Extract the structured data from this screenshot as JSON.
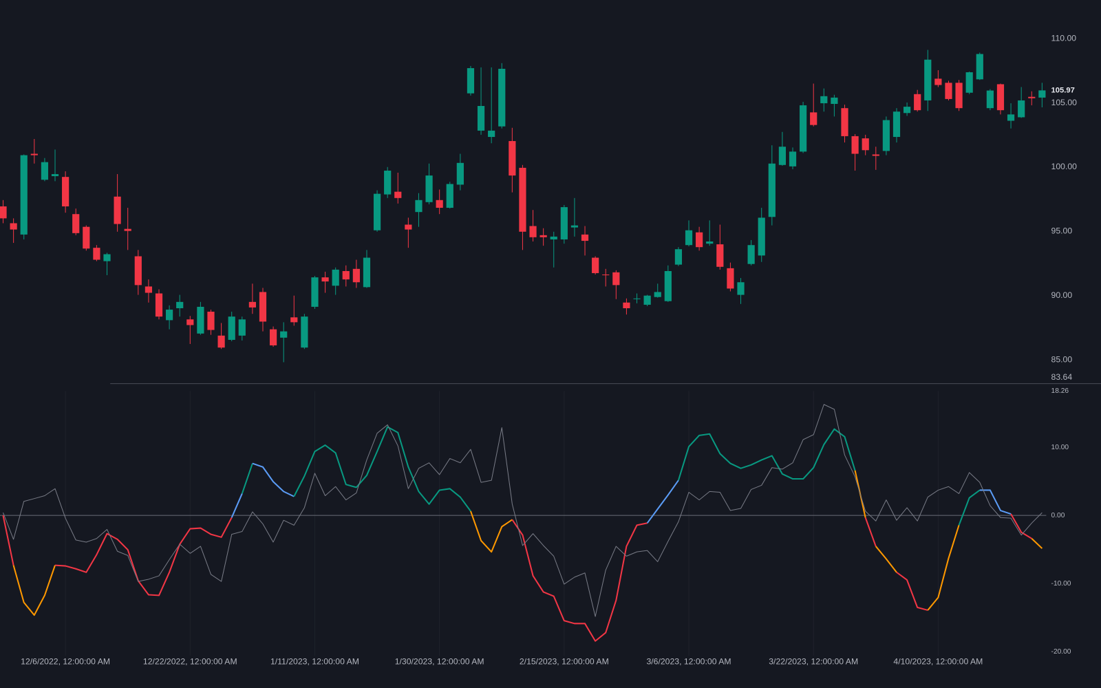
{
  "chart_data": [
    {
      "type": "candlestick",
      "up_color": "#089981",
      "down_color": "#f23645",
      "xlim": [
        -0.3,
        100.4
      ],
      "ylim": [
        83.19,
        113.0
      ],
      "yticks": [
        {
          "value": 110,
          "label": "110.00"
        },
        {
          "value": 105,
          "label": "105.00"
        },
        {
          "value": 100,
          "label": "100.00"
        },
        {
          "value": 95,
          "label": "95.00"
        },
        {
          "value": 90,
          "label": "90.00"
        },
        {
          "value": 85,
          "label": "85.00"
        },
        83.64
      ],
      "grid": false,
      "open": [
        96.95,
        95.64,
        94.76,
        101.04,
        99.02,
        99.3,
        99.24,
        96.35,
        95.36,
        93.73,
        92.69,
        97.71,
        95.2,
        93.07,
        90.72,
        90.18,
        88.1,
        89.03,
        88.16,
        87.06,
        88.76,
        86.9,
        86.57,
        86.9,
        89.52,
        90.29,
        87.39,
        86.74,
        88.32,
        85.97,
        89.14,
        91.43,
        90.78,
        91.92,
        92.09,
        90.67,
        95.09,
        97.88,
        98.09,
        95.53,
        96.51,
        97.28,
        97.44,
        96.84,
        98.64,
        105.74,
        102.84,
        102.35,
        103.17,
        102.03,
        99.95,
        95.42,
        94.71,
        94.38,
        94.38,
        95.31,
        94.76,
        92.96,
        91.65,
        91.82,
        89.47,
        89.74,
        89.3,
        89.9,
        89.58,
        92.42,
        93.94,
        94.93,
        94.05,
        94.0,
        92.14,
        90.07,
        92.47,
        93.13,
        96.13,
        100.17,
        100.06,
        101.21,
        104.26,
        104.97,
        104.92,
        104.59,
        102.41,
        102.24,
        100.99,
        101.26,
        102.35,
        104.21,
        105.68,
        105.19,
        106.88,
        106.56,
        106.56,
        105.79,
        106.83,
        104.59,
        106.45,
        103.61,
        103.88,
        105.47,
        105.41
      ],
      "high": [
        97.44,
        96.02,
        100.99,
        102.19,
        100.71,
        101.37,
        99.68,
        96.78,
        95.47,
        93.94,
        93.34,
        99.46,
        96.84,
        93.56,
        91.27,
        90.5,
        89.25,
        90.07,
        88.43,
        89.52,
        88.92,
        87.88,
        88.76,
        88.38,
        90.94,
        90.61,
        87.61,
        87.94,
        90.01,
        88.59,
        91.54,
        91.87,
        92.2,
        92.36,
        92.8,
        93.56,
        98.2,
        100.01,
        99.57,
        96.07,
        97.98,
        100.28,
        98.26,
        98.86,
        101.04,
        107.87,
        107.76,
        107.76,
        108.09,
        103.06,
        100.17,
        96.67,
        95.25,
        94.98,
        97.06,
        97.6,
        95.42,
        93.07,
        92.09,
        91.98,
        89.79,
        90.18,
        90.07,
        90.94,
        92.36,
        93.78,
        95.86,
        95.36,
        95.86,
        95.53,
        92.58,
        91.38,
        94.33,
        96.84,
        101.7,
        102.74,
        101.53,
        105.08,
        106.5,
        106.12,
        105.63,
        104.86,
        102.57,
        102.52,
        101.59,
        103.94,
        104.59,
        105.03,
        106.01,
        109.12,
        107.54,
        106.72,
        106.78,
        107.43,
        108.91,
        106.07,
        106.5,
        104.97,
        106.23,
        105.9,
        106.56
      ],
      "low": [
        95.64,
        94.11,
        94.38,
        100.28,
        98.91,
        98.91,
        96.46,
        94.71,
        93.51,
        92.69,
        91.6,
        94.98,
        93.56,
        90.07,
        89.47,
        88.16,
        87.39,
        88.38,
        86.25,
        86.96,
        86.96,
        85.86,
        86.46,
        86.52,
        88.59,
        87.23,
        86.03,
        84.83,
        87.67,
        85.86,
        88.98,
        90.23,
        90.07,
        90.72,
        90.61,
        90.61,
        94.98,
        97.6,
        97.17,
        93.73,
        95.36,
        97.11,
        96.35,
        96.78,
        98.2,
        105.57,
        102.52,
        101.86,
        103.01,
        98.04,
        93.56,
        94.22,
        93.89,
        92.2,
        94.05,
        94.6,
        93.13,
        91.65,
        90.72,
        89.74,
        88.54,
        89.41,
        89.19,
        89.85,
        89.52,
        92.31,
        93.84,
        93.51,
        93.89,
        92.03,
        90.34,
        89.36,
        92.36,
        92.63,
        95.47,
        100.11,
        99.84,
        101.1,
        103.17,
        104.32,
        103.94,
        101.92,
        99.73,
        100.93,
        99.79,
        100.93,
        101.92,
        103.99,
        104.32,
        104.37,
        106.23,
        105.19,
        104.37,
        105.68,
        106.78,
        104.43,
        104.1,
        103.01,
        103.83,
        104.81,
        104.65
      ],
      "close": [
        96.02,
        95.15,
        100.93,
        100.93,
        100.39,
        99.46,
        96.95,
        94.87,
        93.67,
        92.8,
        93.23,
        95.58,
        95.04,
        90.83,
        90.23,
        88.38,
        88.92,
        89.52,
        87.72,
        89.14,
        87.34,
        85.97,
        88.38,
        88.16,
        89.09,
        87.99,
        86.14,
        87.23,
        87.94,
        88.38,
        91.43,
        91.11,
        92.03,
        91.27,
        91.05,
        92.96,
        97.93,
        99.73,
        97.6,
        95.15,
        97.44,
        99.35,
        96.84,
        98.69,
        100.33,
        107.7,
        104.76,
        102.84,
        107.65,
        99.35,
        94.98,
        94.55,
        94.55,
        94.6,
        96.89,
        95.47,
        94.27,
        91.76,
        91.6,
        90.83,
        89.03,
        89.79,
        90.01,
        90.29,
        91.92,
        93.62,
        95.09,
        93.78,
        94.22,
        92.25,
        90.56,
        91.05,
        93.94,
        96.07,
        100.28,
        101.59,
        101.21,
        104.81,
        103.28,
        105.52,
        105.41,
        102.41,
        101.04,
        101.32,
        100.88,
        103.66,
        104.32,
        104.7,
        104.43,
        108.36,
        106.39,
        105.3,
        104.59,
        107.38,
        108.8,
        105.96,
        104.43,
        104.1,
        105.19,
        105.36,
        105.97
      ]
    },
    {
      "type": "line",
      "xlim": [
        -0.3,
        100.4
      ],
      "ylim": [
        -20.6,
        18.26
      ],
      "yticks": [
        18.26,
        {
          "value": 10,
          "label": "10.00"
        },
        {
          "value": 0,
          "label": "0.00"
        },
        {
          "value": -10,
          "label": "-10.00"
        },
        {
          "value": -20,
          "label": "-20.00"
        }
      ],
      "hline": 0,
      "xticks": [
        {
          "value": 6,
          "label": "12/6/2022, 12:00:00 AM"
        },
        {
          "value": 18,
          "label": "12/22/2022, 12:00:00 AM"
        },
        {
          "value": 30,
          "label": "1/11/2023, 12:00:00 AM"
        },
        {
          "value": 42,
          "label": "1/30/2023, 12:00:00 AM"
        },
        {
          "value": 54,
          "label": "2/15/2023, 12:00:00 AM"
        },
        {
          "value": 66,
          "label": "3/6/2023, 12:00:00 AM"
        },
        {
          "value": 78,
          "label": "3/22/2023, 12:00:00 AM"
        },
        {
          "value": 90,
          "label": "4/10/2023, 12:00:00 AM"
        }
      ],
      "series": [
        {
          "values": [
            0,
            -7.32,
            -12.78,
            -14.64,
            -11.75,
            -7.32,
            -7.42,
            -7.84,
            -8.35,
            -5.77,
            -2.68,
            -3.51,
            -5.05,
            -9.59,
            -11.65,
            -11.75,
            -8.35,
            -4.23,
            -1.96,
            -1.86,
            -2.78,
            -3.2,
            -0.31,
            3.2,
            7.63,
            7.11,
            4.95,
            3.51,
            2.78,
            5.77,
            9.38,
            10.31,
            9.18,
            4.54,
            4.12,
            5.88,
            9.38,
            12.99,
            12.16,
            7.11,
            3.51,
            1.65,
            3.71,
            3.92,
            2.68,
            0.62,
            -3.71,
            -5.36,
            -1.65,
            -0.62,
            -2.89,
            -8.87,
            -11.24,
            -11.86,
            -15.46,
            -15.88,
            -15.88,
            -18.45,
            -17.22,
            -12.47,
            -4.54,
            -1.44,
            -1.13,
            0.93,
            2.99,
            5.15,
            10.1,
            11.75,
            11.96,
            9.07,
            7.63,
            6.91,
            7.42,
            8.14,
            8.76,
            6.08,
            5.36,
            5.36,
            7.01,
            10.41,
            12.68,
            11.55,
            6.6,
            -0.31,
            -4.54,
            -6.39,
            -8.35,
            -9.48,
            -13.51,
            -13.92,
            -12.06,
            -6.29,
            -1.44,
            2.58,
            3.71,
            3.71,
            0.72,
            0.21,
            -2.47,
            -3.4,
            -4.85
          ],
          "segment_colors": [
            "#f23645",
            "#ff9800",
            "#ff9800",
            "#ff9800",
            "#ff9800",
            "#f23645",
            "#f23645",
            "#f23645",
            "#f23645",
            "#f23645",
            "#f23645",
            "#f23645",
            "#f23645",
            "#f23645",
            "#f23645",
            "#f23645",
            "#f23645",
            "#f23645",
            "#f23645",
            "#f23645",
            "#f23645",
            "#f23645",
            "#5b9cf6",
            "#089981",
            "#5b9cf6",
            "#5b9cf6",
            "#5b9cf6",
            "#5b9cf6",
            "#089981",
            "#089981",
            "#089981",
            "#089981",
            "#089981",
            "#089981",
            "#089981",
            "#089981",
            "#089981",
            "#089981",
            "#089981",
            "#089981",
            "#089981",
            "#089981",
            "#089981",
            "#089981",
            "#089981",
            "#ff9800",
            "#ff9800",
            "#ff9800",
            "#ff9800",
            "#f23645",
            "#f23645",
            "#f23645",
            "#f23645",
            "#f23645",
            "#f23645",
            "#f23645",
            "#f23645",
            "#f23645",
            "#f23645",
            "#f23645",
            "#f23645",
            "#f23645",
            "#5b9cf6",
            "#5b9cf6",
            "#5b9cf6",
            "#089981",
            "#089981",
            "#089981",
            "#089981",
            "#089981",
            "#089981",
            "#089981",
            "#089981",
            "#089981",
            "#089981",
            "#089981",
            "#089981",
            "#089981",
            "#089981",
            "#089981",
            "#089981",
            "#089981",
            "#ff9800",
            "#f23645",
            "#ff9800",
            "#ff9800",
            "#f23645",
            "#f23645",
            "#f23645",
            "#ff9800",
            "#ff9800",
            "#ff9800",
            "#089981",
            "#089981",
            "#5b9cf6",
            "#5b9cf6",
            "#5b9cf6",
            "#f23645",
            "#f23645",
            "#ff9800"
          ]
        },
        {
          "color": "#787b86",
          "values": [
            0.41,
            -3.51,
            2.06,
            2.47,
            2.89,
            3.92,
            -0.41,
            -3.61,
            -3.92,
            -3.4,
            -2.06,
            -5.26,
            -5.88,
            -9.69,
            -9.38,
            -8.87,
            -6.49,
            -4.23,
            -5.57,
            -4.54,
            -8.66,
            -9.69,
            -2.78,
            -2.37,
            0.52,
            -1.24,
            -3.92,
            -0.72,
            -1.44,
            1.13,
            6.19,
            2.89,
            4.23,
            2.27,
            3.3,
            8.14,
            12.06,
            13.3,
            10.21,
            3.92,
            6.91,
            7.73,
            5.98,
            8.35,
            7.73,
            9.69,
            4.85,
            5.15,
            12.89,
            1.65,
            -4.43,
            -2.68,
            -4.43,
            -5.98,
            -10.1,
            -9.07,
            -8.45,
            -14.85,
            -8.04,
            -4.54,
            -5.98,
            -5.36,
            -5.15,
            -6.8,
            -3.81,
            -0.93,
            3.4,
            2.27,
            3.51,
            3.4,
            0.72,
            1.03,
            3.81,
            4.43,
            7.01,
            6.8,
            7.73,
            11.13,
            11.86,
            16.29,
            15.57,
            8.87,
            5.67,
            0.62,
            -0.82,
            2.27,
            -0.72,
            1.13,
            -0.82,
            2.68,
            3.71,
            4.23,
            3.2,
            6.29,
            4.85,
            1.44,
            -0.31,
            -0.41,
            -2.89,
            -1.13,
            0.41
          ]
        }
      ]
    }
  ]
}
